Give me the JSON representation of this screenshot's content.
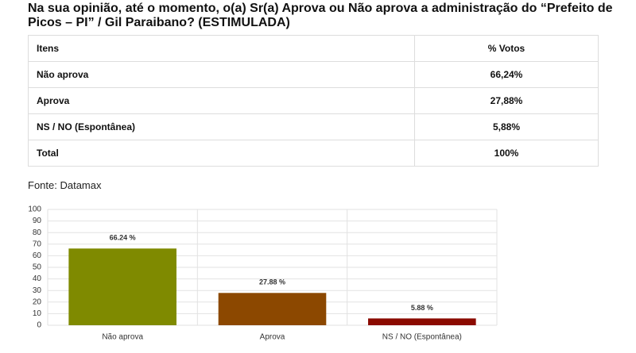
{
  "title": "Na sua opinião, até o momento, o(a) Sr(a) Aprova ou Não aprova a administração do “Prefeito de Picos – PI” / Gil Paraibano? (ESTIMULADA)",
  "table": {
    "header": [
      "Itens",
      "% Votos"
    ],
    "rows": [
      [
        "Não aprova",
        "66,24%"
      ],
      [
        "Aprova",
        "27,88%"
      ],
      [
        "NS / NO (Espontânea)",
        "5,88%"
      ],
      [
        "Total",
        "100%"
      ]
    ]
  },
  "source": "Fonte: Datamax",
  "chart_data": {
    "type": "bar",
    "categories": [
      "Não aprova",
      "Aprova",
      "NS / NO (Espontânea)"
    ],
    "values": [
      66.24,
      27.88,
      5.88
    ],
    "value_labels": [
      "66.24 %",
      "27.88 %",
      "5.88 %"
    ],
    "colors": [
      "#7f8a00",
      "#8c4800",
      "#8b0a00"
    ],
    "ylim": [
      0,
      100
    ],
    "yticks": [
      0,
      10,
      20,
      30,
      40,
      50,
      60,
      70,
      80,
      90,
      100
    ],
    "grid": true
  }
}
